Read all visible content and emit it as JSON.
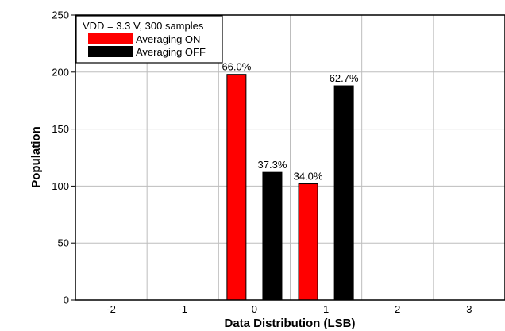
{
  "chart_data": {
    "type": "bar",
    "xlabel": "Data Distribution (LSB)",
    "ylabel": "Population",
    "x_ticks": [
      "-2",
      "-1",
      "0",
      "1",
      "2",
      "3"
    ],
    "y_ticks": [
      "0",
      "50",
      "100",
      "150",
      "200",
      "250"
    ],
    "ylim": [
      0,
      250
    ],
    "xlim": [
      -2.5,
      3.5
    ],
    "grid": true,
    "legend_title": "VDD = 3.3 V, 300 samples",
    "legend_position": "top-left",
    "series": [
      {
        "name": "Averaging ON",
        "color": "#ff0000",
        "points": [
          {
            "x": 0,
            "value": 198,
            "label": "66.0%"
          },
          {
            "x": 1,
            "value": 102,
            "label": "34.0%"
          }
        ]
      },
      {
        "name": "Averaging OFF",
        "color": "#000000",
        "points": [
          {
            "x": 0,
            "value": 112,
            "label": "37.3%"
          },
          {
            "x": 1,
            "value": 188,
            "label": "62.7%"
          }
        ]
      }
    ]
  }
}
